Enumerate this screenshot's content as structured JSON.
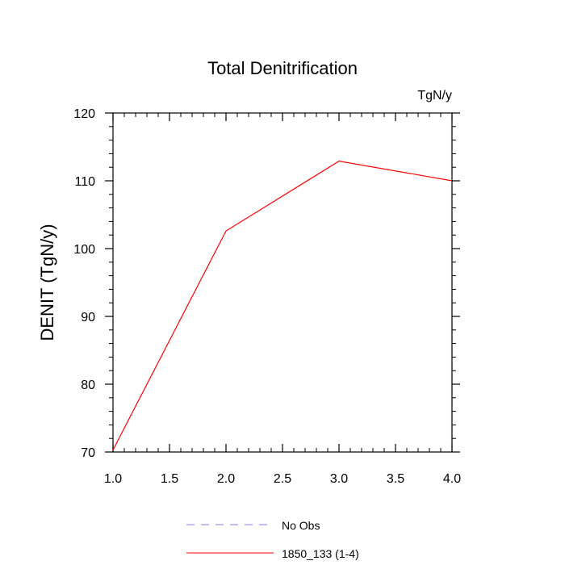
{
  "chart_data": {
    "type": "line",
    "title": "Total Denitrification",
    "units_label": "TgN/y",
    "xlabel": "",
    "ylabel": "DENIT  (TgN/y)",
    "xlim": [
      1.0,
      4.0
    ],
    "ylim": [
      70,
      120
    ],
    "x_ticks": [
      "1.0",
      "1.5",
      "2.0",
      "2.5",
      "3.0",
      "3.5",
      "4.0"
    ],
    "y_ticks": [
      "70",
      "80",
      "90",
      "100",
      "110",
      "120"
    ],
    "grid": false,
    "legend_position": "bottom-center",
    "series": [
      {
        "name": "No Obs",
        "color": "#8080ff",
        "dash": "dashed",
        "x": [],
        "y": []
      },
      {
        "name": "1850_133 (1-4)",
        "color": "#ff0000",
        "dash": "solid",
        "x": [
          1.0,
          2.0,
          3.0,
          4.0
        ],
        "y": [
          70.3,
          102.6,
          112.9,
          110.0
        ]
      }
    ]
  }
}
